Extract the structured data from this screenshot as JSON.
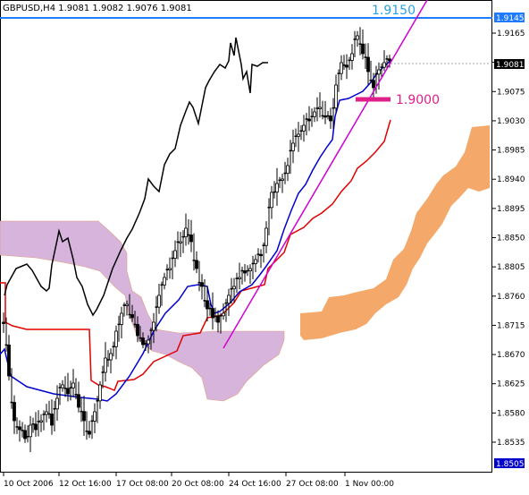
{
  "symbol_line": "GBPUSD,H4  1.9081 1.9082 1.9076 1.9081",
  "y_axis": {
    "min": 1.8495,
    "max": 1.9178,
    "ticks": [
      "1.9165",
      "1.9120",
      "1.9075",
      "1.9030",
      "1.8985",
      "1.8940",
      "1.8895",
      "1.8850",
      "1.8805",
      "1.8760",
      "1.8715",
      "1.8670",
      "1.8625",
      "1.8580",
      "1.8535"
    ]
  },
  "x_axis": {
    "labels": [
      "10 Oct 2006",
      "12 Oct 16:00",
      "17 Oct 08:00",
      "20 Oct 08:00",
      "24 Oct 16:00",
      "27 Oct 08:00",
      "1 Nov 00:00"
    ]
  },
  "price_boxes": {
    "resistance": {
      "value": "1.9145",
      "color": "#1e7bff"
    },
    "current": {
      "value": "1.9081",
      "color": "#000000"
    },
    "bottom": {
      "value": "1.8505",
      "color": "#0000cc"
    }
  },
  "annotations": {
    "level_high": {
      "text": "1.9150",
      "color": "#2aa0e0"
    },
    "level_low": {
      "text": "1.9000",
      "color": "#e0208a"
    }
  },
  "colors": {
    "kumo_bear": "#d6b4dc",
    "kumo_bull": "#f4a86a",
    "kijun": "#e00000",
    "tenkan": "#0000d0",
    "chikou": "#000000",
    "trendline": "#d000d0",
    "resistance_line": "#1e7bff"
  }
}
